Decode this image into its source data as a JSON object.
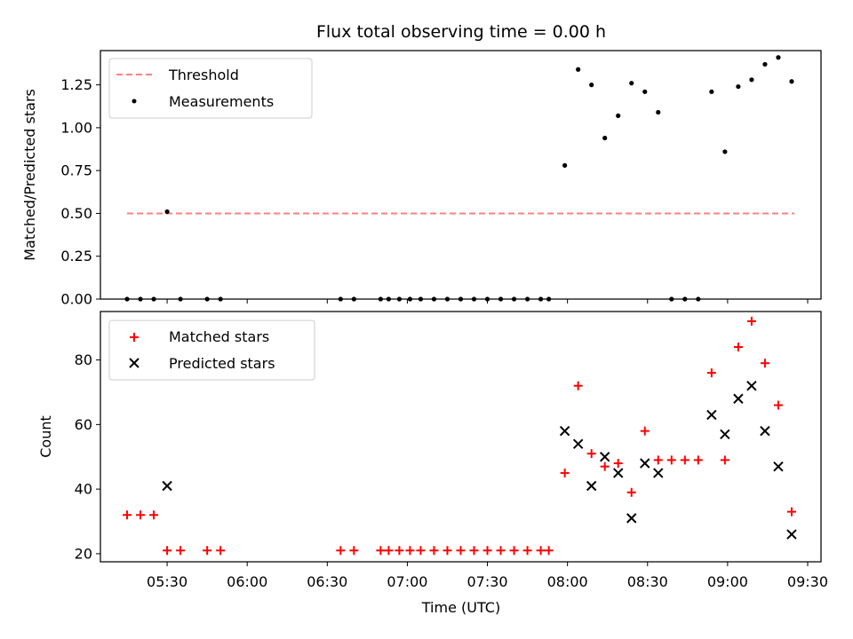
{
  "chart_data": [
    {
      "type": "scatter",
      "panel": "top",
      "title": "Flux total observing time = 0.00 h",
      "xlabel": "",
      "ylabel": "Matched/Predicted stars",
      "xlim": [
        "05:05",
        "09:35"
      ],
      "ylim": [
        0,
        1.45
      ],
      "yticks": [
        0,
        0.25,
        0.5,
        0.75,
        1.0,
        1.25
      ],
      "ytick_labels": [
        "0.00",
        "0.25",
        "0.50",
        "0.75",
        "1.00",
        "1.25"
      ],
      "xticks": [
        "05:30",
        "06:00",
        "06:30",
        "07:00",
        "07:30",
        "08:00",
        "08:30",
        "09:00",
        "09:30"
      ],
      "legend_position": "upper-left",
      "series": [
        {
          "name": "Threshold",
          "kind": "dashed-line",
          "color": "#ff8080",
          "x": [
            "05:15",
            "09:25"
          ],
          "y": [
            0.5,
            0.5
          ]
        },
        {
          "name": "Measurements",
          "kind": "dot",
          "color": "#000000",
          "x": [
            "05:15",
            "05:20",
            "05:25",
            "05:30",
            "05:35",
            "05:45",
            "05:50",
            "06:35",
            "06:40",
            "06:50",
            "06:53",
            "06:57",
            "07:01",
            "07:05",
            "07:10",
            "07:15",
            "07:20",
            "07:25",
            "07:30",
            "07:35",
            "07:40",
            "07:45",
            "07:50",
            "07:53",
            "07:59",
            "08:04",
            "08:09",
            "08:14",
            "08:19",
            "08:24",
            "08:29",
            "08:34",
            "08:39",
            "08:44",
            "08:49",
            "08:54",
            "08:59",
            "09:04",
            "09:09",
            "09:14",
            "09:19",
            "09:24"
          ],
          "y": [
            0,
            0,
            0,
            0.51,
            0,
            0,
            0,
            0,
            0,
            0,
            0,
            0,
            0,
            0,
            0,
            0,
            0,
            0,
            0,
            0,
            0,
            0,
            0,
            0,
            0.78,
            1.34,
            1.25,
            0.94,
            1.07,
            1.26,
            1.21,
            1.09,
            0,
            0,
            0,
            1.21,
            0.86,
            1.24,
            1.28,
            1.37,
            1.41,
            1.27
          ]
        }
      ]
    },
    {
      "type": "scatter",
      "panel": "bottom",
      "title": "",
      "xlabel": "Time (UTC)",
      "ylabel": "Count",
      "xlim": [
        "05:05",
        "09:35"
      ],
      "ylim": [
        17.5,
        95
      ],
      "yticks": [
        20,
        40,
        60,
        80
      ],
      "ytick_labels": [
        "20",
        "40",
        "60",
        "80"
      ],
      "xticks": [
        "05:30",
        "06:00",
        "06:30",
        "07:00",
        "07:30",
        "08:00",
        "08:30",
        "09:00",
        "09:30"
      ],
      "legend_position": "upper-left",
      "series": [
        {
          "name": "Matched stars",
          "kind": "plus",
          "color": "#ff0000",
          "x": [
            "05:15",
            "05:20",
            "05:25",
            "05:30",
            "05:35",
            "05:45",
            "05:50",
            "06:35",
            "06:40",
            "06:50",
            "06:53",
            "06:57",
            "07:01",
            "07:05",
            "07:10",
            "07:15",
            "07:20",
            "07:25",
            "07:30",
            "07:35",
            "07:40",
            "07:45",
            "07:50",
            "07:53",
            "07:59",
            "08:04",
            "08:09",
            "08:14",
            "08:19",
            "08:24",
            "08:29",
            "08:34",
            "08:39",
            "08:44",
            "08:49",
            "08:54",
            "08:59",
            "09:04",
            "09:09",
            "09:14",
            "09:19",
            "09:24"
          ],
          "y": [
            32,
            32,
            32,
            21,
            21,
            21,
            21,
            21,
            21,
            21,
            21,
            21,
            21,
            21,
            21,
            21,
            21,
            21,
            21,
            21,
            21,
            21,
            21,
            21,
            45,
            72,
            51,
            47,
            48,
            39,
            58,
            49,
            49,
            49,
            49,
            76,
            49,
            84,
            92,
            79,
            66,
            33
          ]
        },
        {
          "name": "Predicted stars",
          "kind": "x",
          "color": "#000000",
          "x": [
            "05:30",
            "07:59",
            "08:04",
            "08:09",
            "08:14",
            "08:19",
            "08:24",
            "08:29",
            "08:34",
            "08:54",
            "08:59",
            "09:04",
            "09:09",
            "09:14",
            "09:19",
            "09:24"
          ],
          "y": [
            41,
            58,
            54,
            41,
            50,
            45,
            31,
            48,
            45,
            63,
            57,
            68,
            72,
            58,
            47,
            26
          ]
        }
      ]
    }
  ]
}
